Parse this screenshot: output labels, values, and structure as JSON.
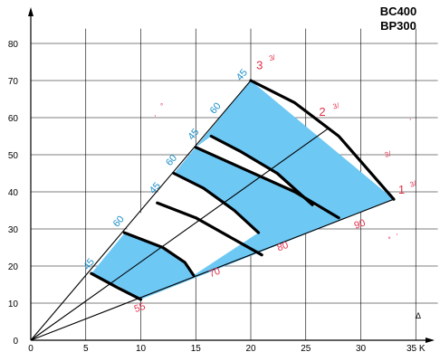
{
  "chart_data": {
    "type": "area",
    "title": "",
    "xlabel": "",
    "ylabel": "",
    "xlim": [
      0,
      37
    ],
    "ylim": [
      0,
      84
    ],
    "grid": true,
    "x_ticks": [
      "0",
      "5",
      "10",
      "15",
      "20",
      "25",
      "30",
      "35 K"
    ],
    "y_ticks": [
      "0",
      "10",
      "20",
      "30",
      "40",
      "50",
      "60",
      "70",
      "80"
    ],
    "models": [
      "BC400",
      "BP300"
    ],
    "x_axis_symbol": "Δ",
    "colors": {
      "fill": "#6ec8f4",
      "curve": "#000000",
      "grid": "#000000",
      "blue_label": "#1a8fc9",
      "red_label": "#e0304a"
    },
    "rays": [
      {
        "label": "1",
        "end": [
          33,
          38
        ]
      },
      {
        "label": "2",
        "end": [
          27,
          57
        ]
      },
      {
        "label": "3",
        "end": [
          20,
          70
        ]
      }
    ],
    "ray_unit": "3/",
    "curves": [
      {
        "label": "55",
        "points": [
          [
            5.5,
            18
          ],
          [
            8,
            14
          ],
          [
            10,
            11
          ]
        ]
      },
      {
        "label": "70",
        "points": [
          [
            8.5,
            29
          ],
          [
            12,
            25
          ],
          [
            14,
            21
          ],
          [
            14.8,
            17.5
          ]
        ]
      },
      {
        "label": "80",
        "points": [
          [
            11.5,
            37
          ],
          [
            15,
            33
          ],
          [
            18,
            28
          ],
          [
            21,
            23
          ]
        ]
      },
      {
        "label": "90",
        "points": [
          [
            15,
            52
          ],
          [
            19.5,
            46
          ],
          [
            24,
            40
          ],
          [
            28,
            33
          ]
        ]
      },
      {
        "label": "",
        "points": [
          [
            20,
            70
          ],
          [
            24,
            64
          ],
          [
            28,
            55
          ],
          [
            33,
            38
          ]
        ]
      },
      {
        "label": "",
        "points": [
          [
            13,
            45
          ],
          [
            15.7,
            41
          ],
          [
            18.5,
            35
          ],
          [
            20.7,
            29
          ]
        ]
      },
      {
        "label": "",
        "points": [
          [
            16.4,
            55
          ],
          [
            19,
            51
          ],
          [
            22.4,
            45
          ],
          [
            25.6,
            36.5
          ]
        ]
      }
    ],
    "blue_labels": [
      "45",
      "60",
      "45",
      "60",
      "45",
      "60",
      "45"
    ],
    "white_band": {
      "outer": [
        [
          8,
          14.5
        ],
        [
          10,
          11
        ]
      ],
      "inner": [
        [
          5.5,
          18
        ],
        [
          8,
          14
        ]
      ]
    },
    "fragment_marks": [
      ",",
      "°",
      ",",
      "°",
      ","
    ]
  }
}
